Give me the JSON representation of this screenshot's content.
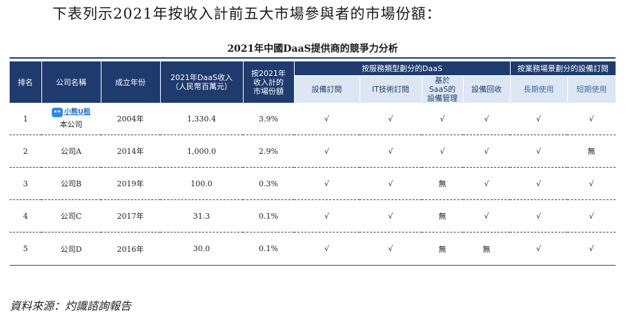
{
  "intro": "下表列示2021年按收入計前五大市場參與者的市場份額：",
  "table_title": "2021年中國DaaS提供商的競爭力分析",
  "headers": {
    "rank": "排名",
    "company": "公司名稱",
    "founded": "成立年份",
    "revenue": "2021年DaaS收入\n（人民幣百萬元）",
    "share": "按2021年\n收入計的\n市場份額",
    "group_service": "按服務類型劃分的DaaS",
    "group_scene": "按業務場景劃分的設備訂閱",
    "sub": [
      "設備訂閱",
      "IT技術訂閱",
      "基於\nSaaS的\n設備管理",
      "設備回收",
      "長期使用",
      "短期使用"
    ]
  },
  "logo": {
    "text": "小熊U租",
    "icon": "bear-logo-icon"
  },
  "rows": [
    {
      "rank": "1",
      "company": "本公司",
      "founded": "2004年",
      "revenue": "1,330.4",
      "share": "3.9%",
      "marks": [
        "√",
        "√",
        "√",
        "√",
        "√",
        "√"
      ]
    },
    {
      "rank": "2",
      "company": "公司A",
      "founded": "2014年",
      "revenue": "1,000.0",
      "share": "2.9%",
      "marks": [
        "√",
        "√",
        "√",
        "√",
        "√",
        "無"
      ]
    },
    {
      "rank": "3",
      "company": "公司B",
      "founded": "2019年",
      "revenue": "100.0",
      "share": "0.3%",
      "marks": [
        "√",
        "√",
        "無",
        "√",
        "√",
        "√"
      ]
    },
    {
      "rank": "4",
      "company": "公司C",
      "founded": "2017年",
      "revenue": "31.3",
      "share": "0.1%",
      "marks": [
        "√",
        "√",
        "無",
        "√",
        "√",
        "√"
      ]
    },
    {
      "rank": "5",
      "company": "公司D",
      "founded": "2016年",
      "revenue": "30.0",
      "share": "0.1%",
      "marks": [
        "√",
        "√",
        "無",
        "無",
        "√",
        "√"
      ]
    }
  ],
  "source": "資料來源：灼識諮詢報告",
  "colors": {
    "header_dark": "#1f3b6e",
    "header_light": "#dde7f3",
    "accent_blue": "#2f5c9a",
    "logo_blue": "#2b8be8"
  }
}
